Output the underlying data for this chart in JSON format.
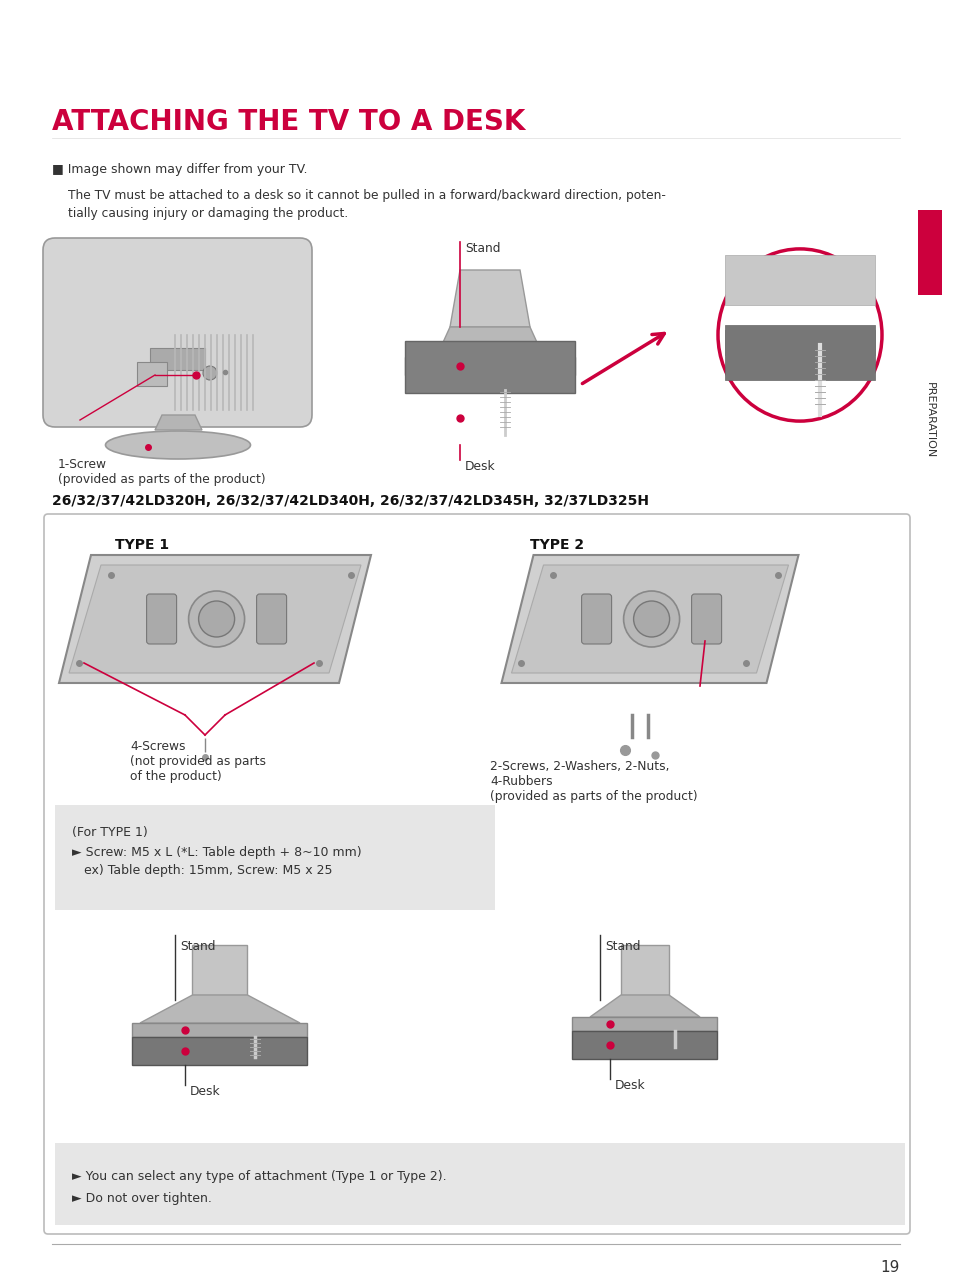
{
  "title": "ATTACHING THE TV TO A DESK",
  "title_color": "#cc003d",
  "title_fontsize": 20,
  "bg_color": "#ffffff",
  "note_bullet": "■ Image shown may differ from your TV.",
  "body_text1": "The TV must be attached to a desk so it cannot be pulled in a forward/backward direction, poten-",
  "body_text2": "tially causing injury or damaging the product.",
  "label_screw_top": "1-Screw\n(provided as parts of the product)",
  "label_stand_top": "Stand",
  "label_desk_top": "Desk",
  "model_line": "26/32/37/42LD320H, 26/32/37/42LD340H, 26/32/37/42LD345H, 32/37LD325H",
  "type1_label": "TYPE 1",
  "type2_label": "TYPE 2",
  "type1_screw_label": "4-Screws\n(not provided as parts\nof the product)",
  "type2_screw_label": "2-Screws, 2-Washers, 2-Nuts,\n4-Rubbers\n(provided as parts of the product)",
  "for_type1_title": "(For TYPE 1)",
  "for_type1_text1": "► Screw: M5 x L (*L: Table depth + 8~10 mm)",
  "for_type1_text2": "   ex) Table depth: 15mm, Screw: M5 x 25",
  "bottom_note1": "► You can select any type of attachment (Type 1 or Type 2).",
  "bottom_note2": "► Do not over tighten.",
  "preparation_text": "PREPARATION",
  "page_number": "19",
  "accent_color": "#cc003d",
  "gray_box_color": "#e6e6e6",
  "box_border_color": "#bbbbbb",
  "tv_body_color": "#d8d8d8",
  "tv_dark_color": "#888888",
  "stand_color": "#c0c0c0",
  "desk_color": "#777777"
}
